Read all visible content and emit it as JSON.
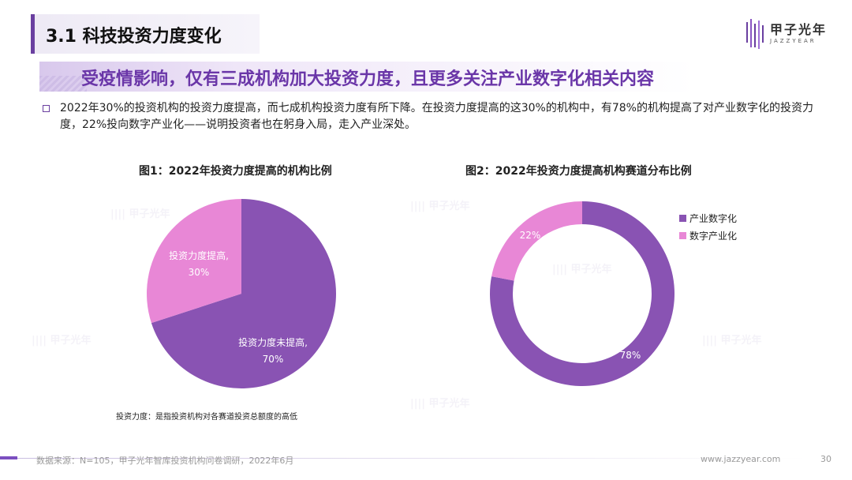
{
  "header": {
    "title": "3.1 科技投资力度变化",
    "logo_text": "甲子光年",
    "logo_sub": "JAZZYEAR"
  },
  "subtitle": "受疫情影响，仅有三成机构加大投资力度，且更多关注产业数字化相关内容",
  "paragraph": "2022年30%的投资机构的投资力度提高，而七成机构投资力度有所下降。在投资力度提高的这30%的机构中，有78%的机构提高了对产业数字化的投资力度，22%投向数字产业化——说明投资者也在躬身入局，走入产业深处。",
  "note": "投资力度：是指投资机构对各赛道投资总额度的高低",
  "footer": {
    "source": "数据来源：N=105，甲子光年智库投资机构问卷调研，2022年6月",
    "site": "www.jazzyear.com",
    "page": "30"
  },
  "colors": {
    "accent": "#6a3fa0",
    "purple": "#8953b3",
    "pink": "#e887d6"
  },
  "chart_data": [
    {
      "type": "pie",
      "title": "图1：2022年投资力度提高的机构比例",
      "slices": [
        {
          "label_line1": "投资力度提高,",
          "label_line2": "30%",
          "value": 30,
          "color": "#e887d6"
        },
        {
          "label_line1": "投资力度未提高,",
          "label_line2": "70%",
          "value": 70,
          "color": "#8953b3"
        }
      ]
    },
    {
      "type": "pie",
      "subtype": "donut",
      "title": "图2：2022年投资力度提高机构赛道分布比例",
      "slices": [
        {
          "name": "产业数字化",
          "label": "78%",
          "value": 78,
          "color": "#8953b3"
        },
        {
          "name": "数字产业化",
          "label": "22%",
          "value": 22,
          "color": "#e887d6"
        }
      ],
      "legend": "right"
    }
  ]
}
